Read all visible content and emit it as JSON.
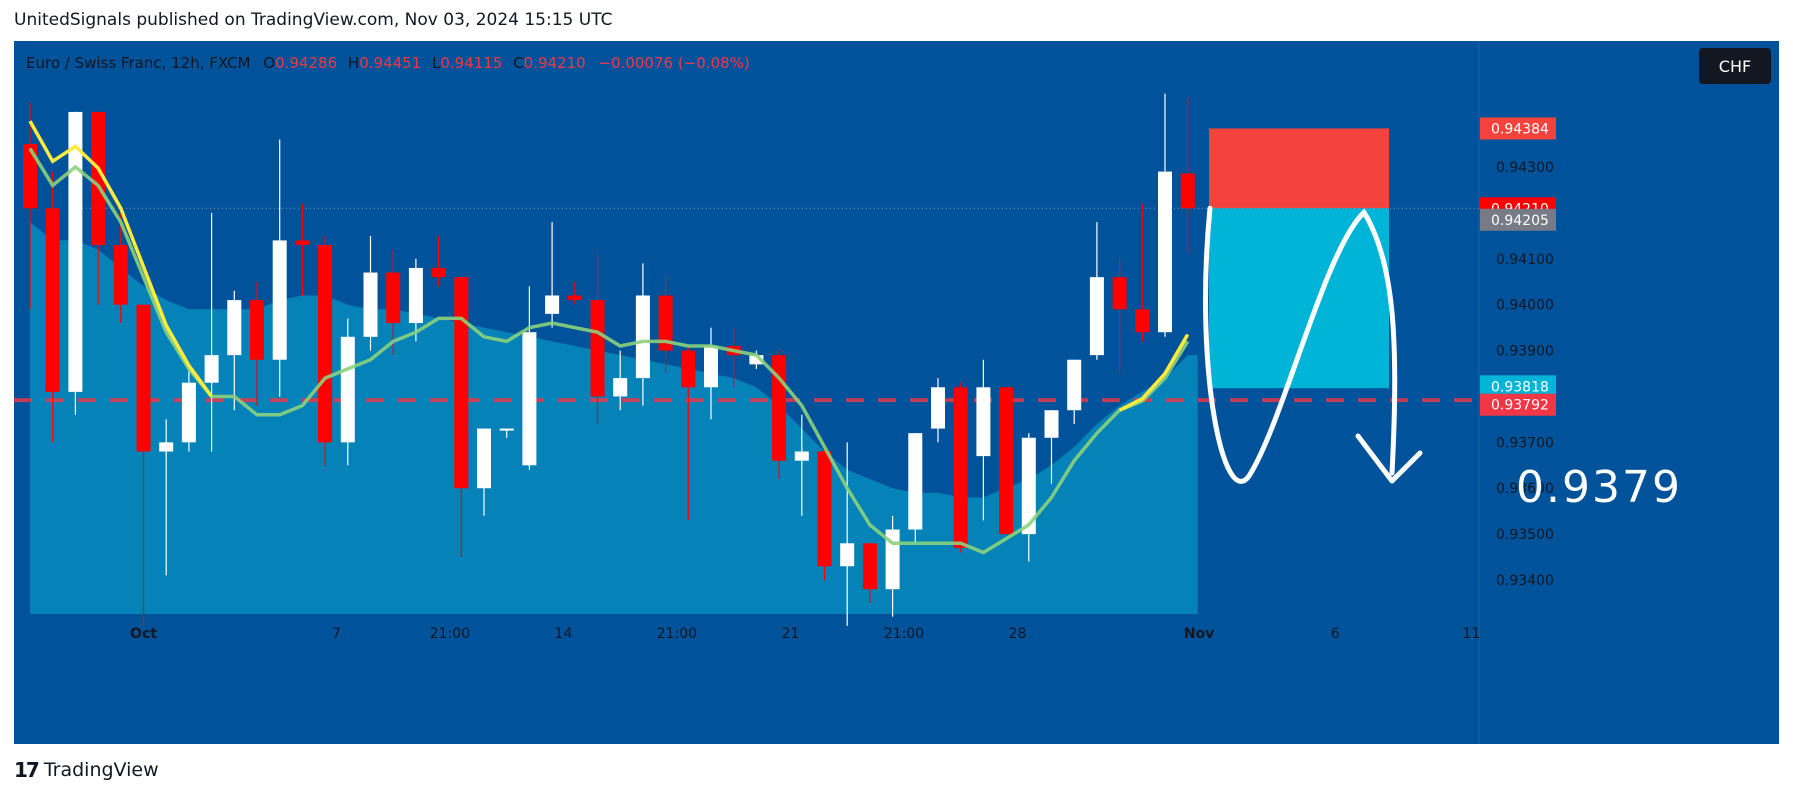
{
  "header": {
    "published_text": "UnitedSignals published on TradingView.com, Nov 03, 2024 15:15 UTC"
  },
  "footer": {
    "brand": "TradingView",
    "logo_glyph": "17"
  },
  "symbol": {
    "name": "Euro / Swiss Franc, 12h, FXCM",
    "o_label": "O",
    "o_value": "0.94286",
    "h_label": "H",
    "h_value": "0.94451",
    "l_label": "L",
    "l_value": "0.94115",
    "c_label": "C",
    "c_value": "0.94210",
    "change": "−0.00076 (−0.08%)"
  },
  "currency_button": "CHF",
  "annotation": {
    "target_text": "0.9379"
  },
  "colors": {
    "background": "#00539a",
    "area_fill": "#0585b8",
    "up_candle": "#ffffff",
    "down_candle": "#ff0000",
    "ma_fast": "#ffeb3b",
    "ma_slow": "#8bd17c",
    "stop_zone": "#f4433c",
    "target_zone": "#00b4d8",
    "dashed_level": "#f23645"
  },
  "chart_data": {
    "type": "candlestick",
    "ylim": [
      0.933,
      0.945
    ],
    "price_axis_ticks": [
      "0.93400",
      "0.93500",
      "0.93600",
      "0.93700",
      "0.93900",
      "0.94000",
      "0.94100",
      "0.94300"
    ],
    "price_badges": [
      {
        "label": "0.94384",
        "value": 0.94384,
        "color": "#f4433c"
      },
      {
        "label": "0.94210",
        "value": 0.9421,
        "color": "#ff0000"
      },
      {
        "label": "0.94205",
        "value": 0.94185,
        "color": "#787b86"
      },
      {
        "label": "0.93818",
        "value": 0.93822,
        "color": "#00b4d8"
      },
      {
        "label": "0.93792",
        "value": 0.93782,
        "color": "#f23645"
      }
    ],
    "time_axis": [
      {
        "label": "Oct",
        "bar": 5,
        "bold": true
      },
      {
        "label": "7",
        "bar": 13.5,
        "bold": false
      },
      {
        "label": "21:00",
        "bar": 18.5,
        "bold": false
      },
      {
        "label": "14",
        "bar": 23.5,
        "bold": false
      },
      {
        "label": "21:00",
        "bar": 28.5,
        "bold": false
      },
      {
        "label": "21",
        "bar": 33.5,
        "bold": false
      },
      {
        "label": "21:00",
        "bar": 38.5,
        "bold": false
      },
      {
        "label": "28",
        "bar": 43.5,
        "bold": false
      },
      {
        "label": "Nov",
        "bar": 51.5,
        "bold": true
      },
      {
        "label": "6",
        "bar": 57.5,
        "bold": false
      },
      {
        "label": "11",
        "bar": 63.5,
        "bold": false
      }
    ],
    "candles": [
      {
        "o": 0.9435,
        "h": 0.9444,
        "l": 0.9399,
        "c": 0.9421
      },
      {
        "o": 0.9421,
        "h": 0.9429,
        "l": 0.937,
        "c": 0.9381
      },
      {
        "o": 0.9381,
        "h": 0.9442,
        "l": 0.9376,
        "c": 0.9442
      },
      {
        "o": 0.9442,
        "h": 0.9442,
        "l": 0.94,
        "c": 0.9413
      },
      {
        "o": 0.9413,
        "h": 0.942,
        "l": 0.9396,
        "c": 0.94
      },
      {
        "o": 0.94,
        "h": 0.94,
        "l": 0.933,
        "c": 0.9368
      },
      {
        "o": 0.9368,
        "h": 0.9375,
        "l": 0.9341,
        "c": 0.937
      },
      {
        "o": 0.937,
        "h": 0.9386,
        "l": 0.9368,
        "c": 0.9383
      },
      {
        "o": 0.9383,
        "h": 0.942,
        "l": 0.9368,
        "c": 0.9389
      },
      {
        "o": 0.9389,
        "h": 0.9403,
        "l": 0.9377,
        "c": 0.9401
      },
      {
        "o": 0.9401,
        "h": 0.9405,
        "l": 0.9378,
        "c": 0.9388
      },
      {
        "o": 0.9388,
        "h": 0.9436,
        "l": 0.938,
        "c": 0.9414
      },
      {
        "o": 0.9414,
        "h": 0.9422,
        "l": 0.9402,
        "c": 0.9413
      },
      {
        "o": 0.9413,
        "h": 0.9415,
        "l": 0.9365,
        "c": 0.937
      },
      {
        "o": 0.937,
        "h": 0.9397,
        "l": 0.9365,
        "c": 0.9393
      },
      {
        "o": 0.9393,
        "h": 0.9415,
        "l": 0.939,
        "c": 0.9407
      },
      {
        "o": 0.9407,
        "h": 0.9412,
        "l": 0.9389,
        "c": 0.9396
      },
      {
        "o": 0.9396,
        "h": 0.941,
        "l": 0.9392,
        "c": 0.9408
      },
      {
        "o": 0.9408,
        "h": 0.9415,
        "l": 0.9404,
        "c": 0.9406
      },
      {
        "o": 0.9406,
        "h": 0.9406,
        "l": 0.9345,
        "c": 0.936
      },
      {
        "o": 0.936,
        "h": 0.9373,
        "l": 0.9354,
        "c": 0.9373
      },
      {
        "o": 0.9373,
        "h": 0.9373,
        "l": 0.9371,
        "c": 0.9373
      },
      {
        "o": 0.9365,
        "h": 0.9404,
        "l": 0.9364,
        "c": 0.9394
      },
      {
        "o": 0.9398,
        "h": 0.9418,
        "l": 0.9395,
        "c": 0.9402
      },
      {
        "o": 0.9402,
        "h": 0.9405,
        "l": 0.94,
        "c": 0.9401
      },
      {
        "o": 0.9401,
        "h": 0.9411,
        "l": 0.9374,
        "c": 0.938
      },
      {
        "o": 0.938,
        "h": 0.939,
        "l": 0.9377,
        "c": 0.9384
      },
      {
        "o": 0.9384,
        "h": 0.9409,
        "l": 0.9378,
        "c": 0.9402
      },
      {
        "o": 0.9402,
        "h": 0.9406,
        "l": 0.9385,
        "c": 0.939
      },
      {
        "o": 0.939,
        "h": 0.9391,
        "l": 0.9353,
        "c": 0.9382
      },
      {
        "o": 0.9382,
        "h": 0.9395,
        "l": 0.9375,
        "c": 0.9391
      },
      {
        "o": 0.9391,
        "h": 0.9395,
        "l": 0.9382,
        "c": 0.9389
      },
      {
        "o": 0.9387,
        "h": 0.939,
        "l": 0.9386,
        "c": 0.9389
      },
      {
        "o": 0.9389,
        "h": 0.939,
        "l": 0.9362,
        "c": 0.9366
      },
      {
        "o": 0.9366,
        "h": 0.9376,
        "l": 0.9354,
        "c": 0.9368
      },
      {
        "o": 0.9368,
        "h": 0.9369,
        "l": 0.934,
        "c": 0.9343
      },
      {
        "o": 0.9343,
        "h": 0.937,
        "l": 0.933,
        "c": 0.9348
      },
      {
        "o": 0.9348,
        "h": 0.9348,
        "l": 0.9335,
        "c": 0.9338
      },
      {
        "o": 0.9338,
        "h": 0.9354,
        "l": 0.9332,
        "c": 0.9351
      },
      {
        "o": 0.9351,
        "h": 0.9372,
        "l": 0.9348,
        "c": 0.9372
      },
      {
        "o": 0.9373,
        "h": 0.9384,
        "l": 0.937,
        "c": 0.9382
      },
      {
        "o": 0.9382,
        "h": 0.9383,
        "l": 0.9346,
        "c": 0.9347
      },
      {
        "o": 0.9367,
        "h": 0.9388,
        "l": 0.9353,
        "c": 0.9382
      },
      {
        "o": 0.9382,
        "h": 0.9382,
        "l": 0.935,
        "c": 0.935
      },
      {
        "o": 0.935,
        "h": 0.9372,
        "l": 0.9344,
        "c": 0.9371
      },
      {
        "o": 0.9371,
        "h": 0.9377,
        "l": 0.9361,
        "c": 0.9377
      },
      {
        "o": 0.9377,
        "h": 0.9388,
        "l": 0.9374,
        "c": 0.9388
      },
      {
        "o": 0.9389,
        "h": 0.9418,
        "l": 0.9388,
        "c": 0.9406
      },
      {
        "o": 0.9406,
        "h": 0.941,
        "l": 0.9385,
        "c": 0.9399
      },
      {
        "o": 0.9399,
        "h": 0.9422,
        "l": 0.9392,
        "c": 0.9394
      },
      {
        "o": 0.9394,
        "h": 0.9446,
        "l": 0.9393,
        "c": 0.9429
      },
      {
        "o": 0.94286,
        "h": 0.94451,
        "l": 0.94115,
        "c": 0.9421
      }
    ],
    "ma_fast": [
      0.9434,
      0.9426,
      0.943,
      0.9426,
      0.9418,
      0.9406,
      0.9394,
      0.9386,
      0.938,
      0.938,
      0.9376,
      0.9376,
      0.9378,
      0.9384,
      0.9386,
      0.9388,
      0.9392,
      0.9394,
      0.9397,
      0.9397,
      0.9393,
      0.9392,
      0.9395,
      0.9396,
      0.9395,
      0.9394,
      0.9391,
      0.9392,
      0.9392,
      0.9391,
      0.9391,
      0.939,
      0.9389,
      0.9384,
      0.9378,
      0.9369,
      0.936,
      0.9352,
      0.9348,
      0.9348,
      0.9348,
      0.9348,
      0.9346,
      0.9349,
      0.9352,
      0.9358,
      0.9366,
      0.9372,
      0.9377,
      0.9379,
      0.9384,
      0.9392
    ],
    "ma_slow": [
      0.9418,
      0.9414,
      0.9414,
      0.9412,
      0.9408,
      0.9404,
      0.9401,
      0.9399,
      0.9399,
      0.9399,
      0.9399,
      0.9401,
      0.9402,
      0.9402,
      0.94,
      0.9399,
      0.9399,
      0.9398,
      0.9397,
      0.9396,
      0.9395,
      0.9394,
      0.9393,
      0.9392,
      0.9391,
      0.939,
      0.9389,
      0.9388,
      0.9387,
      0.9386,
      0.9385,
      0.9384,
      0.9382,
      0.9378,
      0.9373,
      0.9368,
      0.9364,
      0.9362,
      0.936,
      0.9359,
      0.9359,
      0.9358,
      0.9358,
      0.936,
      0.9362,
      0.9365,
      0.9369,
      0.9374,
      0.9378,
      0.9381,
      0.9384,
      0.9389
    ],
    "dashed_level": 0.93792,
    "stop_zone": [
      0.94384,
      0.9421
    ],
    "target_zone": [
      0.9421,
      0.93818
    ]
  }
}
